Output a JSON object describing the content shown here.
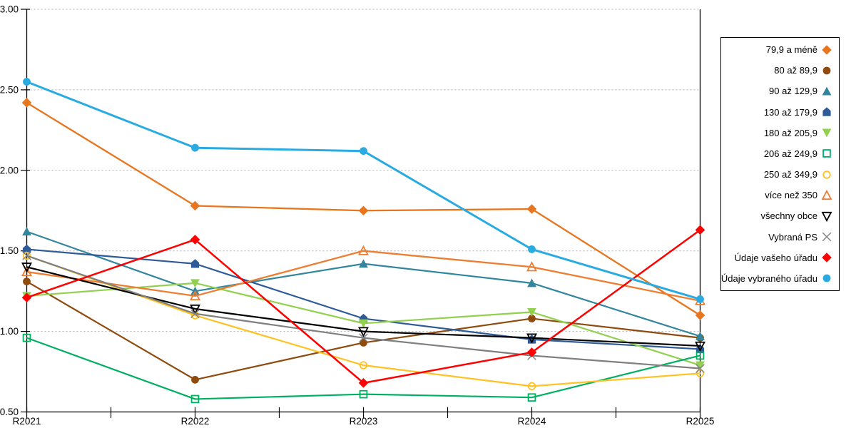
{
  "chart_data": {
    "type": "line",
    "title": "",
    "xlabel": "",
    "ylabel": "",
    "x": [
      "R2021",
      "R2022",
      "R2023",
      "R2024",
      "R2025"
    ],
    "ylim": [
      0.5,
      3.0
    ],
    "ytick_values": [
      0.5,
      1.0,
      1.5,
      2.0,
      2.5,
      3.0
    ],
    "ytick_labels": [
      "0.50",
      "1.00",
      "1.50",
      "2.00",
      "2.50",
      "3.00"
    ],
    "grid": "horizontal-dashed",
    "grid_color": "#ADADAD",
    "legend_position": "right-outside",
    "minor_x_ticks_between_categories": true,
    "series": [
      {
        "name": "79,9 a méně",
        "marker": "diamond",
        "fill": "solid",
        "color": "#E8761F",
        "line_width": 2.3,
        "values": [
          2.42,
          1.78,
          1.75,
          1.76,
          1.1
        ]
      },
      {
        "name": "80 až 89,9",
        "marker": "circle",
        "fill": "solid",
        "color": "#8F4B0E",
        "line_width": 2.2,
        "values": [
          1.31,
          0.7,
          0.93,
          1.08,
          0.96
        ]
      },
      {
        "name": "90 až 129,9",
        "marker": "triangle-up",
        "fill": "solid",
        "color": "#31859C",
        "line_width": 2.2,
        "values": [
          1.62,
          1.25,
          1.42,
          1.3,
          0.97
        ]
      },
      {
        "name": "130 až 179,9",
        "marker": "pentagon",
        "fill": "solid",
        "color": "#2E5B97",
        "line_width": 2.2,
        "values": [
          1.51,
          1.42,
          1.08,
          0.95,
          0.89
        ]
      },
      {
        "name": "180 až 205,9",
        "marker": "triangle-down",
        "fill": "solid",
        "color": "#92D050",
        "line_width": 2.2,
        "values": [
          1.22,
          1.3,
          1.05,
          1.12,
          0.79
        ]
      },
      {
        "name": "206 až 249,9",
        "marker": "square",
        "fill": "open",
        "color": "#00B061",
        "line_width": 2.2,
        "values": [
          0.96,
          0.58,
          0.61,
          0.59,
          0.85
        ]
      },
      {
        "name": "250 až 349,9",
        "marker": "circle",
        "fill": "open",
        "color": "#FFC222",
        "line_width": 2.2,
        "values": [
          1.47,
          1.1,
          0.79,
          0.66,
          0.74
        ]
      },
      {
        "name": "více než 350",
        "marker": "triangle-up",
        "fill": "open",
        "color": "#ED7D31",
        "line_width": 2.3,
        "values": [
          1.37,
          1.22,
          1.5,
          1.4,
          1.19
        ]
      },
      {
        "name": "všechny obce",
        "marker": "triangle-down",
        "fill": "open",
        "color": "#000000",
        "line_width": 2.2,
        "values": [
          1.4,
          1.14,
          1.0,
          0.96,
          0.91
        ]
      },
      {
        "name": "Vybraná PS",
        "marker": "x",
        "fill": "open",
        "color": "#7F7F7F",
        "line_width": 2.2,
        "values": [
          1.47,
          1.11,
          0.96,
          0.85,
          0.77
        ]
      },
      {
        "name": "Údaje vašeho úřadu",
        "marker": "diamond",
        "fill": "solid",
        "color": "#FF0000",
        "line_width": 2.5,
        "values": [
          1.21,
          1.57,
          0.68,
          0.87,
          1.63
        ]
      },
      {
        "name": "Údaje vybraného úřadu",
        "marker": "circle",
        "fill": "solid",
        "color": "#29ABE2",
        "line_width": 3.0,
        "values": [
          2.55,
          2.14,
          2.12,
          1.51,
          1.2
        ]
      }
    ]
  }
}
